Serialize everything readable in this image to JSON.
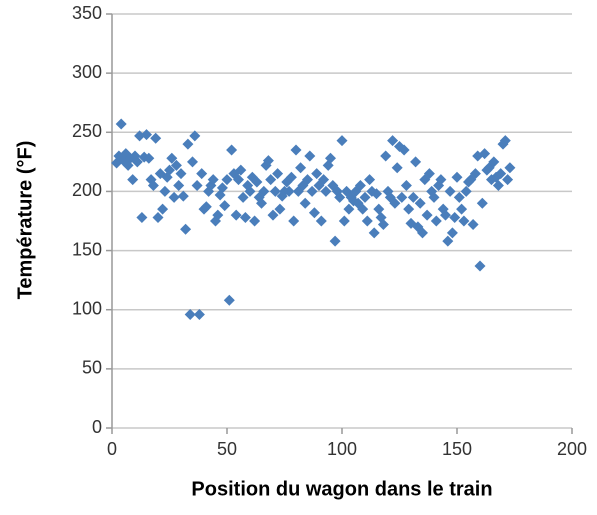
{
  "chart_data": {
    "type": "scatter",
    "x_label": "Position du wagon dans le train",
    "y_label": "Température (°F)",
    "xlim": [
      0,
      200
    ],
    "xticks": [
      0,
      50,
      100,
      150,
      200
    ],
    "ylim": [
      0,
      350
    ],
    "yticks": [
      0,
      50,
      100,
      150,
      200,
      250,
      300,
      350
    ],
    "grid": true,
    "color": "#4a7ebb",
    "x": [
      2,
      3,
      4,
      5,
      6,
      7,
      8,
      9,
      10,
      11,
      12,
      13,
      14,
      15,
      16,
      17,
      18,
      19,
      20,
      21,
      22,
      23,
      24,
      25,
      26,
      27,
      28,
      29,
      30,
      31,
      32,
      33,
      34,
      35,
      36,
      37,
      38,
      39,
      40,
      41,
      42,
      43,
      44,
      45,
      46,
      47,
      48,
      49,
      50,
      51,
      52,
      53,
      54,
      55,
      56,
      57,
      58,
      59,
      60,
      61,
      62,
      63,
      64,
      65,
      66,
      67,
      68,
      69,
      70,
      71,
      72,
      73,
      74,
      75,
      76,
      77,
      78,
      79,
      80,
      81,
      82,
      83,
      84,
      85,
      86,
      87,
      88,
      89,
      90,
      91,
      92,
      93,
      94,
      95,
      96,
      97,
      98,
      99,
      100,
      101,
      102,
      103,
      104,
      105,
      106,
      107,
      108,
      109,
      110,
      111,
      112,
      113,
      114,
      115,
      116,
      117,
      118,
      119,
      120,
      121,
      122,
      123,
      124,
      125,
      126,
      127,
      128,
      129,
      130,
      131,
      132,
      133,
      134,
      135,
      136,
      137,
      138,
      139,
      140,
      141,
      142,
      143,
      144,
      145,
      146,
      147,
      148,
      149,
      150,
      151,
      152,
      153,
      154,
      155,
      156,
      157,
      158,
      159,
      160,
      161,
      162,
      163,
      164,
      165,
      166,
      167,
      168,
      169,
      170,
      171,
      172,
      173
    ],
    "y": [
      224,
      230,
      257,
      226,
      232,
      222,
      228,
      210,
      230,
      225,
      247,
      178,
      229,
      248,
      228,
      210,
      205,
      245,
      178,
      215,
      185,
      200,
      212,
      218,
      228,
      195,
      222,
      205,
      215,
      196,
      168,
      240,
      96,
      225,
      247,
      205,
      96,
      215,
      185,
      187,
      200,
      205,
      210,
      175,
      180,
      197,
      203,
      188,
      210,
      108,
      235,
      215,
      180,
      210,
      218,
      195,
      178,
      205,
      200,
      212,
      175,
      208,
      195,
      190,
      200,
      222,
      226,
      210,
      180,
      200,
      215,
      185,
      196,
      200,
      208,
      200,
      212,
      175,
      235,
      200,
      220,
      205,
      190,
      210,
      230,
      200,
      182,
      215,
      205,
      175,
      210,
      200,
      222,
      228,
      205,
      158,
      200,
      195,
      243,
      175,
      200,
      185,
      195,
      192,
      200,
      190,
      205,
      185,
      195,
      175,
      210,
      200,
      165,
      198,
      185,
      178,
      172,
      230,
      200,
      195,
      243,
      190,
      220,
      238,
      195,
      235,
      205,
      185,
      173,
      195,
      225,
      170,
      190,
      165,
      210,
      180,
      215,
      200,
      195,
      175,
      205,
      210,
      185,
      180,
      158,
      200,
      165,
      178,
      212,
      195,
      185,
      175,
      200,
      208,
      210,
      172,
      215,
      230,
      137,
      190,
      232,
      218,
      220,
      210,
      225,
      212,
      205,
      215,
      240,
      243,
      210,
      220
    ]
  }
}
